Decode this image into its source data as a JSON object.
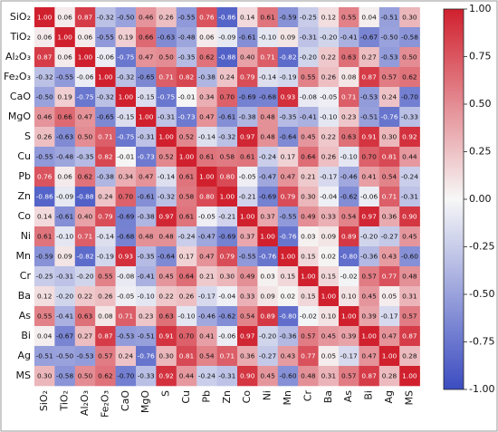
{
  "chart_data": {
    "type": "heatmap",
    "labels": [
      "SiO₂",
      "TiO₂",
      "Al₂O₃",
      "Fe₂O₃",
      "CaO",
      "MgO",
      "S",
      "Cu",
      "Pb",
      "Zn",
      "Co",
      "Ni",
      "Mn",
      "Cr",
      "Ba",
      "As",
      "Bi",
      "Ag",
      "MS"
    ],
    "values": [
      [
        1.0,
        0.06,
        0.87,
        -0.32,
        -0.5,
        0.46,
        0.26,
        -0.55,
        0.76,
        -0.86,
        0.14,
        0.61,
        -0.59,
        -0.25,
        0.12,
        0.55,
        0.04,
        -0.51,
        0.3
      ],
      [
        0.06,
        1.0,
        0.06,
        -0.55,
        0.19,
        0.66,
        -0.63,
        -0.48,
        0.06,
        -0.09,
        -0.61,
        -0.1,
        0.09,
        -0.31,
        -0.2,
        -0.41,
        -0.67,
        -0.5,
        -0.58
      ],
      [
        0.87,
        0.06,
        1.0,
        -0.06,
        -0.75,
        0.47,
        0.5,
        -0.35,
        0.62,
        -0.88,
        0.4,
        0.71,
        -0.82,
        -0.2,
        0.22,
        0.63,
        0.27,
        -0.53,
        0.5
      ],
      [
        -0.32,
        -0.55,
        -0.06,
        1.0,
        -0.32,
        -0.65,
        0.71,
        0.82,
        -0.38,
        0.24,
        0.79,
        -0.14,
        -0.19,
        0.55,
        0.26,
        0.08,
        0.87,
        0.57,
        0.62
      ],
      [
        -0.5,
        0.19,
        -0.75,
        -0.32,
        1.0,
        -0.15,
        -0.75,
        -0.01,
        0.34,
        0.7,
        -0.69,
        -0.68,
        0.93,
        -0.08,
        -0.05,
        0.71,
        -0.53,
        0.24,
        -0.7
      ],
      [
        0.46,
        0.66,
        0.47,
        -0.65,
        -0.15,
        1.0,
        -0.31,
        -0.73,
        0.47,
        -0.61,
        -0.38,
        0.48,
        -0.35,
        -0.41,
        -0.1,
        0.23,
        -0.51,
        -0.76,
        -0.33
      ],
      [
        0.26,
        -0.63,
        0.5,
        0.71,
        -0.75,
        -0.31,
        1.0,
        0.52,
        -0.14,
        -0.32,
        0.97,
        0.48,
        -0.64,
        0.45,
        0.22,
        0.63,
        0.91,
        0.3,
        0.92
      ],
      [
        -0.55,
        -0.48,
        -0.35,
        0.82,
        -0.01,
        -0.73,
        0.52,
        1.0,
        0.61,
        0.58,
        0.61,
        -0.24,
        0.17,
        0.64,
        0.26,
        -0.1,
        0.7,
        0.81,
        0.44
      ],
      [
        0.76,
        0.06,
        0.62,
        -0.38,
        0.34,
        0.47,
        -0.14,
        0.61,
        1.0,
        0.8,
        -0.05,
        -0.47,
        0.47,
        0.21,
        -0.17,
        -0.46,
        0.41,
        0.54,
        -0.24
      ],
      [
        -0.86,
        -0.09,
        -0.88,
        0.24,
        0.7,
        -0.61,
        -0.32,
        0.58,
        0.8,
        1.0,
        -0.21,
        -0.69,
        0.79,
        0.3,
        -0.04,
        -0.62,
        -0.06,
        0.71,
        -0.31
      ],
      [
        0.14,
        -0.61,
        0.4,
        0.79,
        -0.69,
        -0.38,
        0.97,
        0.61,
        -0.05,
        -0.21,
        1.0,
        0.37,
        -0.55,
        0.49,
        0.33,
        0.54,
        0.97,
        0.36,
        0.9
      ],
      [
        0.61,
        -0.1,
        0.71,
        -0.14,
        -0.68,
        0.48,
        0.48,
        -0.24,
        -0.47,
        -0.69,
        0.37,
        1.0,
        -0.76,
        0.03,
        0.09,
        0.89,
        -0.2,
        -0.27,
        0.45
      ],
      [
        -0.59,
        0.09,
        -0.82,
        -0.19,
        0.93,
        -0.35,
        -0.64,
        0.17,
        0.47,
        0.79,
        -0.55,
        -0.76,
        1.0,
        0.15,
        0.02,
        -0.8,
        -0.36,
        0.43,
        -0.6
      ],
      [
        -0.25,
        -0.31,
        -0.2,
        0.55,
        -0.08,
        -0.41,
        0.45,
        0.64,
        0.21,
        0.3,
        0.49,
        0.03,
        0.15,
        1.0,
        0.15,
        -0.02,
        0.57,
        0.77,
        0.48
      ],
      [
        0.12,
        -0.2,
        0.22,
        0.26,
        -0.05,
        -0.1,
        0.22,
        0.26,
        -0.17,
        -0.04,
        0.33,
        0.09,
        0.02,
        0.15,
        1.0,
        0.1,
        0.45,
        0.05,
        0.31
      ],
      [
        0.55,
        -0.41,
        0.63,
        0.08,
        0.71,
        0.23,
        0.63,
        -0.1,
        -0.46,
        -0.62,
        0.54,
        0.89,
        -0.8,
        -0.02,
        0.1,
        1.0,
        0.39,
        -0.17,
        0.57
      ],
      [
        0.04,
        -0.67,
        0.27,
        0.87,
        -0.53,
        -0.51,
        0.91,
        0.7,
        0.41,
        -0.06,
        0.97,
        -0.2,
        -0.36,
        0.57,
        0.45,
        0.39,
        1.0,
        0.47,
        0.87
      ],
      [
        -0.51,
        -0.5,
        -0.53,
        0.57,
        0.24,
        -0.76,
        0.3,
        0.81,
        0.54,
        0.71,
        0.36,
        -0.27,
        0.43,
        0.77,
        0.05,
        -0.17,
        0.47,
        1.0,
        0.28
      ],
      [
        0.3,
        -0.58,
        0.5,
        0.62,
        -0.7,
        -0.33,
        0.92,
        0.44,
        -0.24,
        -0.31,
        0.9,
        0.45,
        -0.6,
        0.48,
        0.31,
        0.57,
        0.87,
        0.28,
        1.0
      ]
    ],
    "colorbar": {
      "min": -1.0,
      "max": 1.0,
      "ticks": [
        "1.00",
        "0.75",
        "0.50",
        "0.25",
        "0.00",
        "-0.25",
        "-0.50",
        "-0.75",
        "-1.00"
      ],
      "tick_values": [
        1.0,
        0.75,
        0.5,
        0.25,
        0.0,
        -0.25,
        -0.5,
        -0.75,
        -1.0
      ],
      "colormap": "coolwarm (blue → white → red)"
    }
  },
  "colors": {
    "low": "#3b4cc0",
    "mid": "#f7f7f7",
    "high": "#d0202e"
  }
}
